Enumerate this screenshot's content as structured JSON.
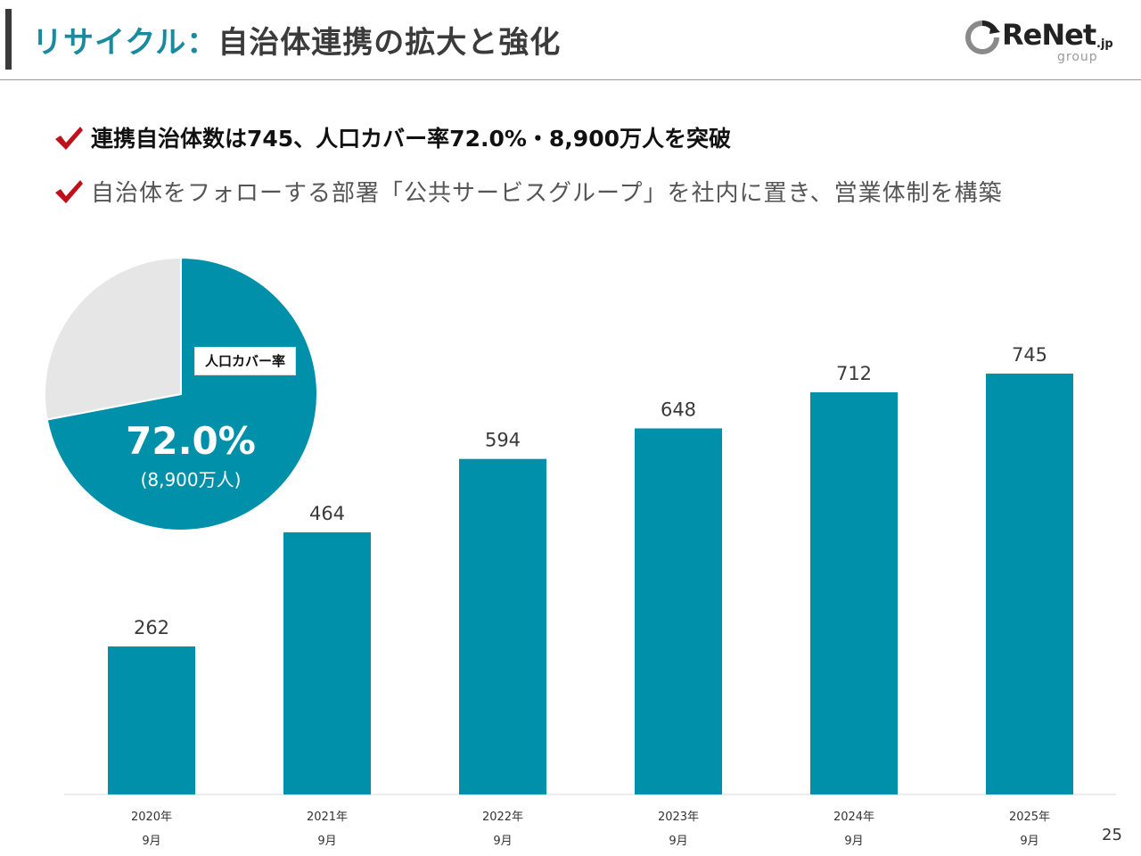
{
  "header": {
    "title_part1": "リサイクル：",
    "title_part2": "自治体連携の拡大と強化",
    "logo_main": "ReNet",
    "logo_suffix": ".jp",
    "logo_group": "group"
  },
  "bullets": [
    "連携自治体数は745、人口カバー率72.0%・8,900万人を突破",
    "自治体をフォローする部署「公共サービスグループ」を社内に置き、営業体制を構築"
  ],
  "pie": {
    "label": "人口カバー率",
    "value_text": "72.0%",
    "sub_text": "(8,900万人)",
    "covered_pct": 72.0,
    "covered_color": "#0090aa",
    "rest_color": "#e6e6e6"
  },
  "chart_data": {
    "type": "bar",
    "categories": [
      [
        "2020年",
        "9月"
      ],
      [
        "2021年",
        "9月"
      ],
      [
        "2022年",
        "9月"
      ],
      [
        "2023年",
        "9月"
      ],
      [
        "2024年",
        "9月"
      ],
      [
        "2025年",
        "9月"
      ]
    ],
    "values": [
      262,
      464,
      594,
      648,
      712,
      745
    ],
    "ylim": [
      0,
      800
    ],
    "grid": false,
    "bar_color": "#0090aa",
    "title": "",
    "xlabel": "",
    "ylabel": ""
  },
  "footer": {
    "page_number": "25"
  }
}
